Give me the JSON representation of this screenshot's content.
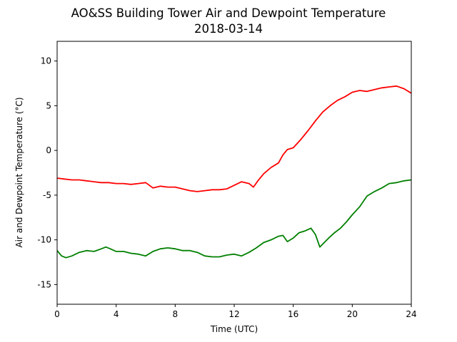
{
  "chart_data": {
    "type": "line",
    "title": "AO&SS Building Tower Air and Dewpoint Temperature",
    "subtitle": "2018-03-14",
    "xlabel": "Time (UTC)",
    "ylabel": "Air and Dewpoint Temperature (°C)",
    "xlim": [
      0,
      24
    ],
    "ylim": [
      -17.2,
      12.2
    ],
    "xticks": [
      0,
      4,
      8,
      12,
      16,
      20,
      24
    ],
    "yticks": [
      -15,
      -10,
      -5,
      0,
      5,
      10
    ],
    "grid": false,
    "series": [
      {
        "color": "#ff0000",
        "x": [
          0,
          0.5,
          1,
          1.5,
          2,
          2.5,
          3,
          3.5,
          4,
          4.5,
          5,
          5.5,
          6,
          6.5,
          7,
          7.5,
          8,
          8.5,
          9,
          9.5,
          10,
          10.5,
          11,
          11.5,
          12,
          12.5,
          13,
          13.3,
          13.6,
          14,
          14.5,
          15,
          15.3,
          15.6,
          16,
          16.5,
          17,
          17.5,
          18,
          18.5,
          19,
          19.5,
          20,
          20.5,
          21,
          21.5,
          22,
          22.5,
          23,
          23.5,
          24
        ],
        "y": [
          -3.1,
          -3.2,
          -3.3,
          -3.3,
          -3.4,
          -3.5,
          -3.6,
          -3.6,
          -3.7,
          -3.7,
          -3.8,
          -3.7,
          -3.6,
          -4.2,
          -4.0,
          -4.1,
          -4.1,
          -4.3,
          -4.5,
          -4.6,
          -4.5,
          -4.4,
          -4.4,
          -4.3,
          -3.9,
          -3.5,
          -3.7,
          -4.1,
          -3.4,
          -2.6,
          -1.9,
          -1.4,
          -0.5,
          0.1,
          0.3,
          1.2,
          2.2,
          3.3,
          4.3,
          5.0,
          5.6,
          6.0,
          6.5,
          6.7,
          6.6,
          6.8,
          7.0,
          7.1,
          7.2,
          6.9,
          6.4
        ]
      },
      {
        "color": "#008000",
        "x": [
          0,
          0.3,
          0.6,
          1,
          1.5,
          2,
          2.5,
          3,
          3.3,
          3.6,
          4,
          4.5,
          5,
          5.5,
          6,
          6.5,
          7,
          7.5,
          8,
          8.5,
          9,
          9.5,
          10,
          10.5,
          11,
          11.5,
          12,
          12.5,
          13,
          13.5,
          14,
          14.5,
          15,
          15.3,
          15.6,
          16,
          16.4,
          16.8,
          17.2,
          17.5,
          17.8,
          18.1,
          18.4,
          18.8,
          19.2,
          19.6,
          20,
          20.5,
          21,
          21.5,
          22,
          22.5,
          23,
          23.5,
          24
        ],
        "y": [
          -11.2,
          -11.8,
          -12.0,
          -11.8,
          -11.4,
          -11.2,
          -11.3,
          -11.0,
          -10.8,
          -11.0,
          -11.3,
          -11.3,
          -11.5,
          -11.6,
          -11.8,
          -11.3,
          -11.0,
          -10.9,
          -11.0,
          -11.2,
          -11.2,
          -11.4,
          -11.8,
          -11.9,
          -11.9,
          -11.7,
          -11.6,
          -11.8,
          -11.4,
          -10.9,
          -10.3,
          -10.0,
          -9.6,
          -9.5,
          -10.2,
          -9.8,
          -9.2,
          -9.0,
          -8.7,
          -9.4,
          -10.8,
          -10.3,
          -9.8,
          -9.2,
          -8.7,
          -8.0,
          -7.2,
          -6.3,
          -5.1,
          -4.6,
          -4.2,
          -3.7,
          -3.6,
          -3.4,
          -3.3
        ]
      }
    ]
  }
}
